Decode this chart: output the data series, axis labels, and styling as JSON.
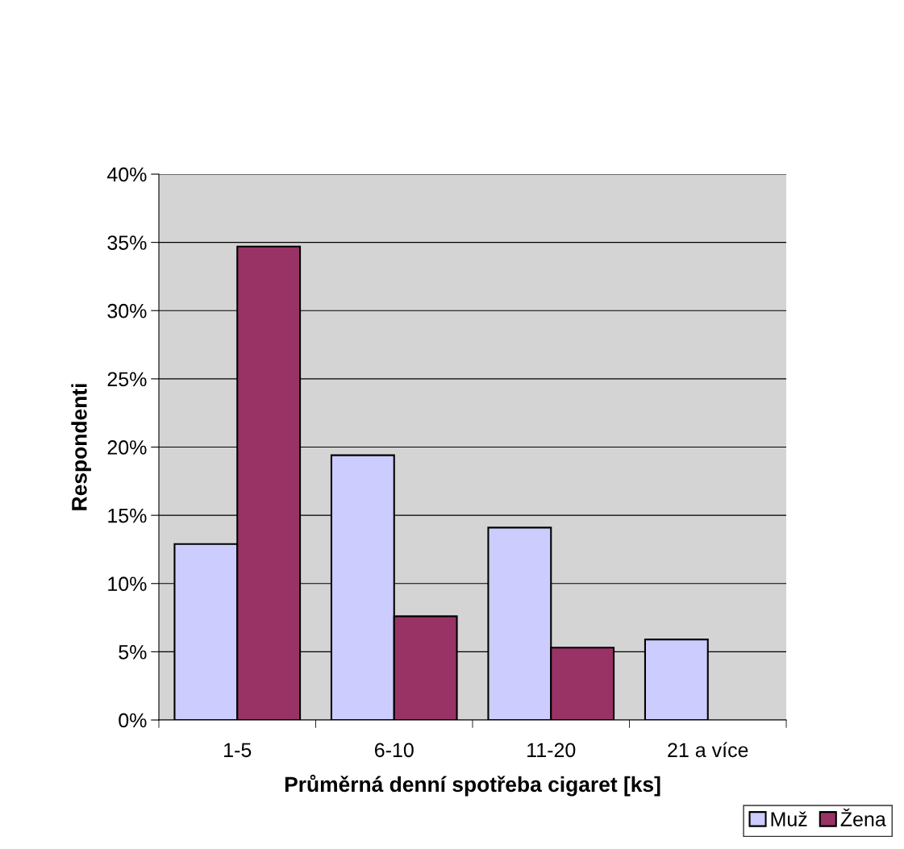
{
  "chart_data": {
    "type": "bar",
    "xlabel": "Průměrná denní spotřeba cigaret [ks]",
    "ylabel": "Respondenti",
    "categories": [
      "1-5",
      "6-10",
      "11-20",
      "21 a více"
    ],
    "series": [
      {
        "name": "Muž",
        "color": "#ccccff",
        "values": [
          12.9,
          19.4,
          14.1,
          5.9
        ]
      },
      {
        "name": "Žena",
        "color": "#993366",
        "values": [
          34.7,
          7.6,
          5.3,
          null
        ]
      }
    ],
    "ylim": [
      0,
      40
    ],
    "yticks": [
      {
        "value": 0,
        "label": "0%"
      },
      {
        "value": 5,
        "label": "5%"
      },
      {
        "value": 10,
        "label": "10%"
      },
      {
        "value": 15,
        "label": "15%"
      },
      {
        "value": 20,
        "label": "20%"
      },
      {
        "value": 25,
        "label": "25%"
      },
      {
        "value": 30,
        "label": "30%"
      },
      {
        "value": 35,
        "label": "35%"
      },
      {
        "value": 40,
        "label": "40%"
      }
    ],
    "grid": "y",
    "legend": "bottom right"
  }
}
